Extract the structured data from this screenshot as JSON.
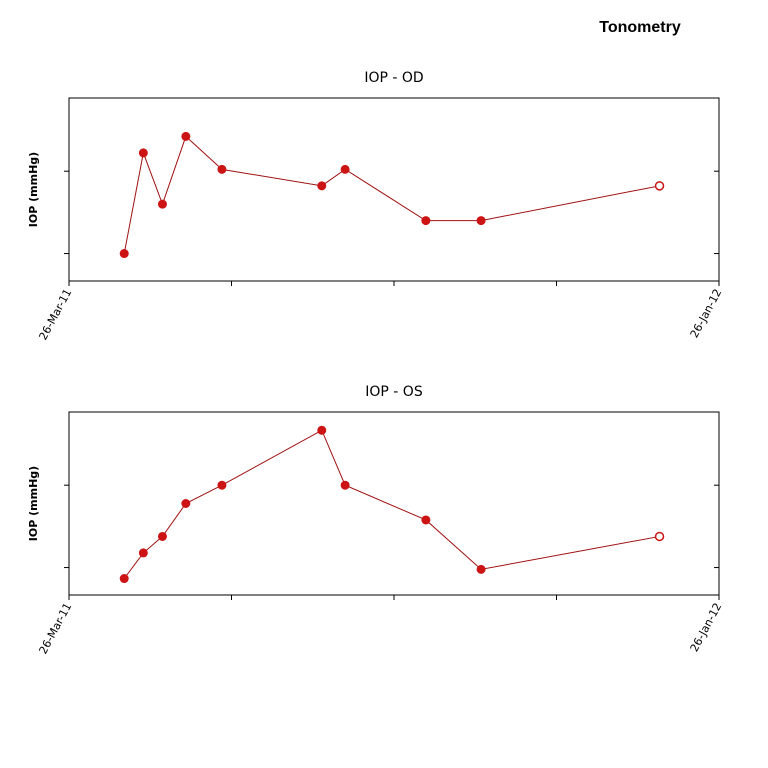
{
  "title": "Tonometry",
  "colors": {
    "line": "#a01010",
    "marker": "#cc1414",
    "open_marker_fill": "#ffffff",
    "axis": "#000000"
  },
  "chart_data": [
    {
      "type": "line",
      "title": "IOP - OD",
      "ylabel": "IOP (mmHg)",
      "xlabel": "",
      "x_tick_labels": [
        "26-Mar-11",
        "26-Jan-12"
      ],
      "xlim": [
        "2011-03-26",
        "2012-01-26"
      ],
      "ylim": [
        0,
        1
      ],
      "y_tick_values": [
        0.15,
        0.6
      ],
      "grid": false,
      "series": [
        {
          "x": [
            "2011-04-21",
            "2011-04-30",
            "2011-05-09",
            "2011-05-20",
            "2011-06-06",
            "2011-07-23",
            "2011-08-03",
            "2011-09-10",
            "2011-10-06",
            "2011-12-29"
          ],
          "y": [
            0.15,
            0.7,
            0.42,
            0.79,
            0.61,
            0.52,
            0.61,
            0.33,
            0.33,
            0.52
          ],
          "open_last": true
        }
      ]
    },
    {
      "type": "line",
      "title": "IOP - OS",
      "ylabel": "IOP (mmHg)",
      "xlabel": "",
      "x_tick_labels": [
        "26-Mar-11",
        "26-Jan-12"
      ],
      "xlim": [
        "2011-03-26",
        "2012-01-26"
      ],
      "ylim": [
        0,
        1
      ],
      "y_tick_values": [
        0.15,
        0.6
      ],
      "grid": false,
      "series": [
        {
          "x": [
            "2011-04-21",
            "2011-04-30",
            "2011-05-09",
            "2011-05-20",
            "2011-06-06",
            "2011-07-23",
            "2011-08-03",
            "2011-09-10",
            "2011-10-06",
            "2011-12-29"
          ],
          "y": [
            0.09,
            0.23,
            0.32,
            0.5,
            0.6,
            0.9,
            0.6,
            0.41,
            0.14,
            0.32
          ],
          "open_last": true
        }
      ]
    }
  ]
}
